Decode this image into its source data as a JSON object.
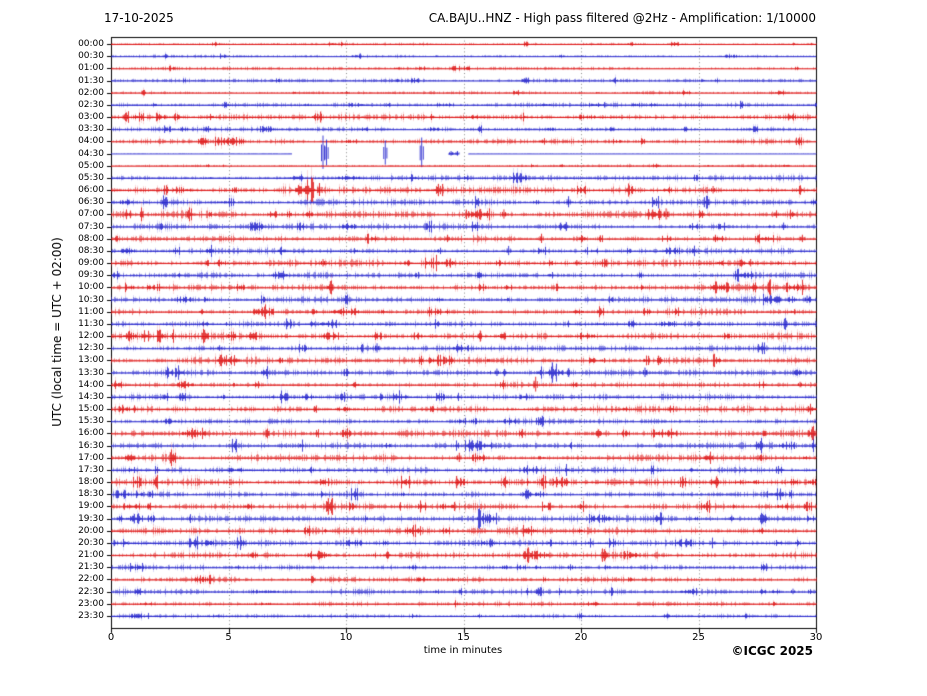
{
  "header": {
    "date": "17-10-2025",
    "title": "CA.BAJU..HNZ - High pass filtered @2Hz - Amplification: 1/10000"
  },
  "footer": {
    "copyright": "©ICGC 2025"
  },
  "chart_data": {
    "type": "line",
    "subtype": "helicorder-day-plot",
    "station": "CA.BAJU..HNZ",
    "filter": "High pass filtered @2Hz",
    "amplification": "1/10000",
    "date": "17-10-2025",
    "xlabel": "time in minutes",
    "ylabel": "UTC (local time = UTC + 02:00)",
    "xlim": [
      0,
      30
    ],
    "x_ticks": [
      0,
      5,
      10,
      15,
      20,
      25,
      30
    ],
    "grid": "vertical dotted lines every 5 minutes",
    "row_interval_minutes": 30,
    "colors": {
      "red": "#dd1111",
      "blue": "#2222cc",
      "grid": "#8a8a8a",
      "frame": "#000000",
      "text": "#000000"
    },
    "rows": [
      {
        "time": "00:00",
        "color": "red",
        "amp": 0.5,
        "bursts": [],
        "spikes": []
      },
      {
        "time": "00:30",
        "color": "blue",
        "amp": 0.55,
        "bursts": [],
        "spikes": []
      },
      {
        "time": "01:00",
        "color": "red",
        "amp": 0.55,
        "bursts": [],
        "spikes": []
      },
      {
        "time": "01:30",
        "color": "blue",
        "amp": 0.65,
        "bursts": [],
        "spikes": []
      },
      {
        "time": "02:00",
        "color": "red",
        "amp": 0.55,
        "bursts": [],
        "spikes": []
      },
      {
        "time": "02:30",
        "color": "blue",
        "amp": 0.75,
        "bursts": [
          [
            13.8,
            14.6,
            1.5
          ],
          [
            20.3,
            21.0,
            1.4
          ]
        ],
        "spikes": []
      },
      {
        "time": "03:00",
        "color": "red",
        "amp": 1.15,
        "bursts": [
          [
            0.9,
            1.4,
            2.0
          ],
          [
            1.9,
            2.3,
            1.8
          ],
          [
            15.2,
            15.7,
            1.5
          ],
          [
            19.9,
            20.6,
            1.6
          ]
        ],
        "spikes": []
      },
      {
        "time": "03:30",
        "color": "blue",
        "amp": 0.9,
        "bursts": [
          [
            6.3,
            6.9,
            1.5
          ]
        ],
        "spikes": []
      },
      {
        "time": "04:00",
        "color": "red",
        "amp": 1.0,
        "bursts": [
          [
            4.4,
            5.5,
            2.0
          ],
          [
            9.9,
            10.4,
            1.5
          ]
        ],
        "spikes": []
      },
      {
        "time": "04:30",
        "color": "blue",
        "amp": 0.45,
        "segments": [
          {
            "from": 0,
            "to": 7.7,
            "amp": 0.45,
            "flat": true
          },
          {
            "from": 14.35,
            "to": 14.8,
            "amp": 0.9
          },
          {
            "from": 15.2,
            "to": 30,
            "amp": 0.35,
            "flat": true
          }
        ],
        "bursts": [],
        "spikes": [
          [
            9.0,
            18
          ],
          [
            9.15,
            14
          ],
          [
            11.65,
            13
          ],
          [
            13.2,
            16
          ],
          [
            14.45,
            2.5
          ],
          [
            14.72,
            2.5
          ]
        ]
      },
      {
        "time": "05:00",
        "color": "red",
        "amp": 0.5,
        "bursts": [],
        "spikes": []
      },
      {
        "time": "05:30",
        "color": "blue",
        "amp": 1.05,
        "bursts": [
          [
            7.4,
            8.1,
            1.6
          ],
          [
            9.6,
            10.3,
            1.5
          ],
          [
            17.0,
            17.7,
            2.3
          ]
        ],
        "spikes": []
      },
      {
        "time": "06:00",
        "color": "red",
        "amp": 1.35,
        "bursts": [
          [
            2.6,
            3.4,
            1.7
          ],
          [
            7.8,
            8.6,
            1.5
          ]
        ],
        "spikes": [
          [
            8.85,
            7
          ],
          [
            25.6,
            4
          ]
        ]
      },
      {
        "time": "06:30",
        "color": "blue",
        "amp": 1.25,
        "bursts": [
          [
            0.3,
            0.9,
            1.6
          ],
          [
            4.5,
            5.2,
            1.4
          ]
        ],
        "spikes": [
          [
            19.45,
            6
          ]
        ]
      },
      {
        "time": "07:00",
        "color": "red",
        "amp": 1.55,
        "bursts": [
          [
            15.1,
            16.1,
            1.9
          ],
          [
            22.8,
            23.4,
            1.6
          ]
        ],
        "spikes": [
          [
            16.7,
            5
          ],
          [
            23.6,
            6
          ],
          [
            28.3,
            4
          ]
        ]
      },
      {
        "time": "07:30",
        "color": "blue",
        "amp": 1.25,
        "bursts": [
          [
            5.9,
            6.5,
            1.5
          ],
          [
            9.8,
            10.4,
            1.5
          ]
        ],
        "spikes": [
          [
            28.6,
            4
          ]
        ]
      },
      {
        "time": "08:00",
        "color": "red",
        "amp": 1.45,
        "bursts": [
          [
            27.4,
            28.2,
            1.5
          ]
        ],
        "spikes": [
          [
            14.3,
            4
          ],
          [
            18.3,
            5
          ],
          [
            25.7,
            4
          ],
          [
            29.4,
            4
          ]
        ]
      },
      {
        "time": "08:30",
        "color": "blue",
        "amp": 1.25,
        "bursts": [
          [
            0.4,
            1.0,
            1.7
          ],
          [
            23.5,
            24.2,
            1.5
          ]
        ],
        "spikes": [
          [
            16.9,
            5
          ]
        ]
      },
      {
        "time": "09:00",
        "color": "red",
        "amp": 1.45,
        "bursts": [
          [
            13.8,
            14.6,
            1.6
          ]
        ],
        "spikes": [
          [
            9.0,
            4
          ],
          [
            19.8,
            3
          ],
          [
            27.2,
            4
          ]
        ]
      },
      {
        "time": "09:30",
        "color": "blue",
        "amp": 1.25,
        "bursts": [
          [
            6.8,
            7.5,
            1.5
          ],
          [
            26.5,
            27.3,
            1.5
          ]
        ],
        "spikes": []
      },
      {
        "time": "10:00",
        "color": "red",
        "amp": 1.45,
        "bursts": [
          [
            1.5,
            2.2,
            1.6
          ],
          [
            25.5,
            26.3,
            1.6
          ],
          [
            28.7,
            29.3,
            1.5
          ]
        ],
        "spikes": []
      },
      {
        "time": "10:30",
        "color": "blue",
        "amp": 1.25,
        "bursts": [
          [
            2.8,
            3.4,
            1.5
          ],
          [
            27.8,
            28.5,
            1.6
          ]
        ],
        "spikes": [
          [
            29.6,
            4
          ]
        ]
      },
      {
        "time": "11:00",
        "color": "red",
        "amp": 1.35,
        "bursts": [
          [
            6.2,
            6.9,
            1.8
          ],
          [
            9.3,
            10.3,
            1.6
          ],
          [
            19.5,
            20.1,
            1.5
          ]
        ],
        "spikes": []
      },
      {
        "time": "11:30",
        "color": "blue",
        "amp": 1.25,
        "bursts": [
          [
            8.9,
            9.6,
            1.6
          ],
          [
            23.4,
            24.0,
            1.5
          ]
        ],
        "spikes": [
          [
            25.0,
            3
          ]
        ]
      },
      {
        "time": "12:00",
        "color": "red",
        "amp": 1.45,
        "bursts": [
          [
            0.5,
            1.1,
            1.7
          ],
          [
            9.0,
            9.7,
            1.5
          ],
          [
            19.9,
            20.6,
            1.6
          ]
        ],
        "spikes": []
      },
      {
        "time": "12:30",
        "color": "blue",
        "amp": 1.25,
        "bursts": [
          [
            14.5,
            15.2,
            1.5
          ]
        ],
        "spikes": [
          [
            4.6,
            3
          ],
          [
            11.3,
            5
          ]
        ]
      },
      {
        "time": "13:00",
        "color": "red",
        "amp": 1.5,
        "bursts": [
          [
            4.5,
            5.2,
            1.6
          ],
          [
            13.5,
            14.2,
            1.5
          ],
          [
            20.3,
            21.0,
            1.5
          ]
        ],
        "spikes": []
      },
      {
        "time": "13:30",
        "color": "blue",
        "amp": 1.25,
        "bursts": [
          [
            18.5,
            19.2,
            1.5
          ]
        ],
        "spikes": [
          [
            16.4,
            4
          ],
          [
            22.7,
            5
          ]
        ]
      },
      {
        "time": "14:00",
        "color": "red",
        "amp": 1.35,
        "bursts": [
          [
            2.8,
            3.5,
            1.6
          ]
        ],
        "spikes": [
          [
            18.05,
            8
          ],
          [
            29.3,
            3
          ]
        ]
      },
      {
        "time": "14:30",
        "color": "blue",
        "amp": 1.15,
        "bursts": [
          [
            12.0,
            12.6,
            1.4
          ]
        ],
        "spikes": []
      },
      {
        "time": "15:00",
        "color": "red",
        "amp": 1.35,
        "bursts": [
          [
            0.6,
            1.1,
            1.5
          ],
          [
            9.5,
            10.2,
            1.5
          ]
        ],
        "spikes": []
      },
      {
        "time": "15:30",
        "color": "blue",
        "amp": 1.25,
        "bursts": [
          [
            2.2,
            2.8,
            1.4
          ],
          [
            16.5,
            17.2,
            1.5
          ]
        ],
        "spikes": []
      },
      {
        "time": "16:00",
        "color": "red",
        "amp": 1.45,
        "bursts": [
          [
            3.0,
            3.8,
            1.6
          ],
          [
            23.0,
            23.8,
            1.5
          ]
        ],
        "spikes": []
      },
      {
        "time": "16:30",
        "color": "blue",
        "amp": 1.35,
        "bursts": [
          [
            15.4,
            16.2,
            1.6
          ],
          [
            28.4,
            29.1,
            1.5
          ]
        ],
        "spikes": []
      },
      {
        "time": "17:00",
        "color": "red",
        "amp": 1.45,
        "bursts": [
          [
            0.5,
            1.0,
            1.5
          ],
          [
            15.3,
            15.9,
            2.1
          ]
        ],
        "spikes": [
          [
            14.8,
            5
          ]
        ]
      },
      {
        "time": "17:30",
        "color": "blue",
        "amp": 1.3,
        "bursts": [
          [
            5.0,
            5.6,
            1.5
          ],
          [
            17.5,
            18.2,
            1.5
          ]
        ],
        "spikes": []
      },
      {
        "time": "18:00",
        "color": "red",
        "amp": 1.55,
        "bursts": [
          [
            18.8,
            19.5,
            1.7
          ],
          [
            27.0,
            27.6,
            1.4
          ]
        ],
        "spikes": []
      },
      {
        "time": "18:30",
        "color": "blue",
        "amp": 1.4,
        "bursts": [
          [
            0.2,
            0.8,
            1.6
          ],
          [
            17.8,
            18.5,
            1.6
          ],
          [
            27.9,
            28.6,
            1.6
          ]
        ],
        "spikes": []
      },
      {
        "time": "19:00",
        "color": "red",
        "amp": 1.35,
        "bursts": [
          [
            0.5,
            1.2,
            1.5
          ],
          [
            14.0,
            14.6,
            1.4
          ]
        ],
        "spikes": []
      },
      {
        "time": "19:30",
        "color": "blue",
        "amp": 1.25,
        "bursts": [
          [
            0.6,
            1.2,
            1.6
          ],
          [
            15.6,
            16.4,
            2.0
          ],
          [
            20.3,
            21.3,
            1.5
          ]
        ],
        "spikes": [
          [
            26.4,
            3
          ]
        ]
      },
      {
        "time": "20:00",
        "color": "red",
        "amp": 1.45,
        "bursts": [
          [
            12.5,
            13.2,
            1.6
          ],
          [
            17.5,
            18.1,
            1.5
          ]
        ],
        "spikes": []
      },
      {
        "time": "20:30",
        "color": "blue",
        "amp": 1.25,
        "bursts": [
          [
            10.0,
            10.7,
            1.5
          ],
          [
            24.0,
            24.7,
            1.5
          ]
        ],
        "spikes": []
      },
      {
        "time": "21:00",
        "color": "red",
        "amp": 1.35,
        "bursts": [
          [
            8.5,
            9.3,
            1.6
          ],
          [
            17.8,
            18.6,
            1.6
          ],
          [
            21.8,
            22.4,
            1.5
          ]
        ],
        "spikes": []
      },
      {
        "time": "21:30",
        "color": "blue",
        "amp": 1.15,
        "bursts": [
          [
            0.8,
            1.4,
            1.7
          ]
        ],
        "spikes": []
      },
      {
        "time": "22:00",
        "color": "red",
        "amp": 1.05,
        "bursts": [
          [
            3.5,
            4.3,
            1.8
          ],
          [
            13.0,
            13.6,
            1.4
          ]
        ],
        "spikes": []
      },
      {
        "time": "22:30",
        "color": "blue",
        "amp": 1.05,
        "bursts": [
          [
            6.0,
            7.2,
            1.4
          ],
          [
            24.2,
            24.9,
            1.5
          ]
        ],
        "spikes": [
          [
            29.0,
            3
          ]
        ]
      },
      {
        "time": "23:00",
        "color": "red",
        "amp": 0.85,
        "bursts": [
          [
            1.2,
            1.8,
            1.5
          ],
          [
            6.3,
            7.0,
            1.4
          ],
          [
            20.2,
            20.8,
            1.4
          ]
        ],
        "spikes": []
      },
      {
        "time": "23:30",
        "color": "blue",
        "amp": 0.75,
        "bursts": [
          [
            0.8,
            1.3,
            1.5
          ]
        ],
        "spikes": []
      }
    ]
  }
}
